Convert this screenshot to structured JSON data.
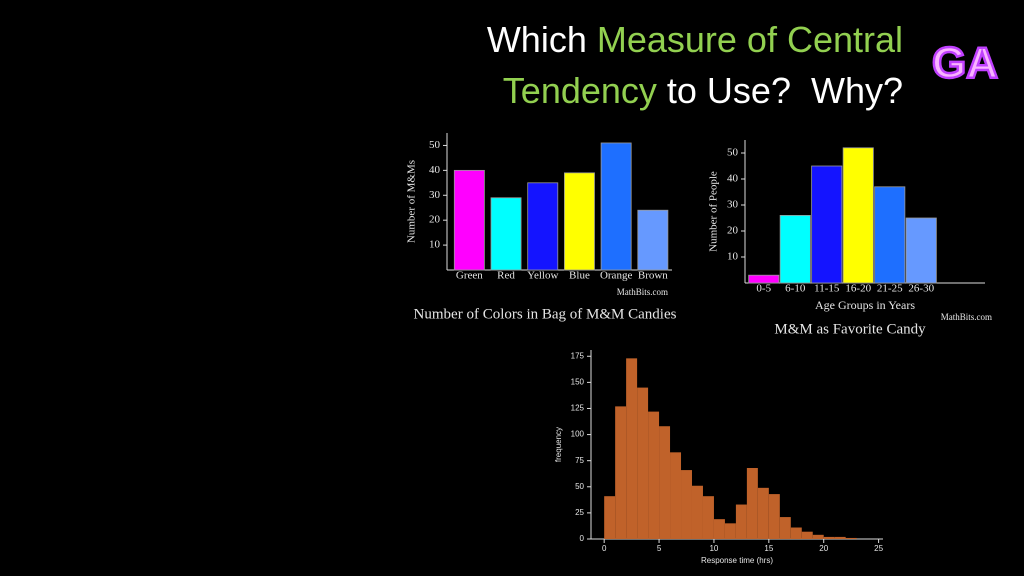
{
  "slide": {
    "title_line1": [
      {
        "text": "Which ",
        "color": "#ffffff"
      },
      {
        "text": "Measure of Central",
        "color": "#92d050"
      }
    ],
    "title_line2": [
      {
        "text": "Tendency",
        "color": "#92d050"
      },
      {
        "text": " to Use?  Why?",
        "color": "#ffffff"
      }
    ],
    "logo": "GA"
  },
  "chart_data": [
    {
      "type": "bar",
      "title": "Number of Colors in Bag of M&M Candies",
      "source": "MathBits.com",
      "y_label": "Number of M&Ms",
      "categories": [
        "Green",
        "Red",
        "Yellow",
        "Blue",
        "Orange",
        "Brown"
      ],
      "values": [
        40,
        29,
        35,
        39,
        51,
        24
      ],
      "colors": [
        "#ff00ff",
        "#00ffff",
        "#1414ff",
        "#ffff00",
        "#1e6fff",
        "#6699ff"
      ],
      "ylim": [
        0,
        55
      ],
      "yticks": [
        10,
        20,
        30,
        40,
        50
      ]
    },
    {
      "type": "bar",
      "title": "M&M as Favorite Candy",
      "source": "MathBits.com",
      "y_label": "Number of People",
      "x_label": "Age Groups in Years",
      "categories": [
        "0-5",
        "6-10",
        "11-15",
        "16-20",
        "21-25",
        "26-30"
      ],
      "values": [
        3,
        26,
        45,
        52,
        37,
        25
      ],
      "colors": [
        "#ff00ff",
        "#00ffff",
        "#1414ff",
        "#ffff00",
        "#1e6fff",
        "#6699ff"
      ],
      "ylim": [
        0,
        55
      ],
      "yticks": [
        10,
        20,
        30,
        40,
        50
      ]
    },
    {
      "type": "histogram",
      "x_label": "Response time (hrs)",
      "y_label": "frequency",
      "color": "#c0622a",
      "bins": [
        0,
        1,
        2,
        3,
        4,
        5,
        6,
        7,
        8,
        9,
        10,
        11,
        12,
        13,
        14,
        15,
        16,
        17,
        18,
        19,
        20,
        21,
        22,
        23
      ],
      "values": [
        41,
        127,
        173,
        145,
        122,
        108,
        83,
        66,
        51,
        41,
        19,
        15,
        33,
        68,
        49,
        43,
        21,
        11,
        7,
        4,
        2,
        2,
        1
      ],
      "xlim": [
        -1.2,
        25.4
      ],
      "ylim": [
        0,
        181
      ],
      "xticks": [
        0,
        5,
        10,
        15,
        20,
        25
      ],
      "yticks": [
        0,
        25,
        50,
        75,
        100,
        125,
        150,
        175
      ]
    }
  ]
}
